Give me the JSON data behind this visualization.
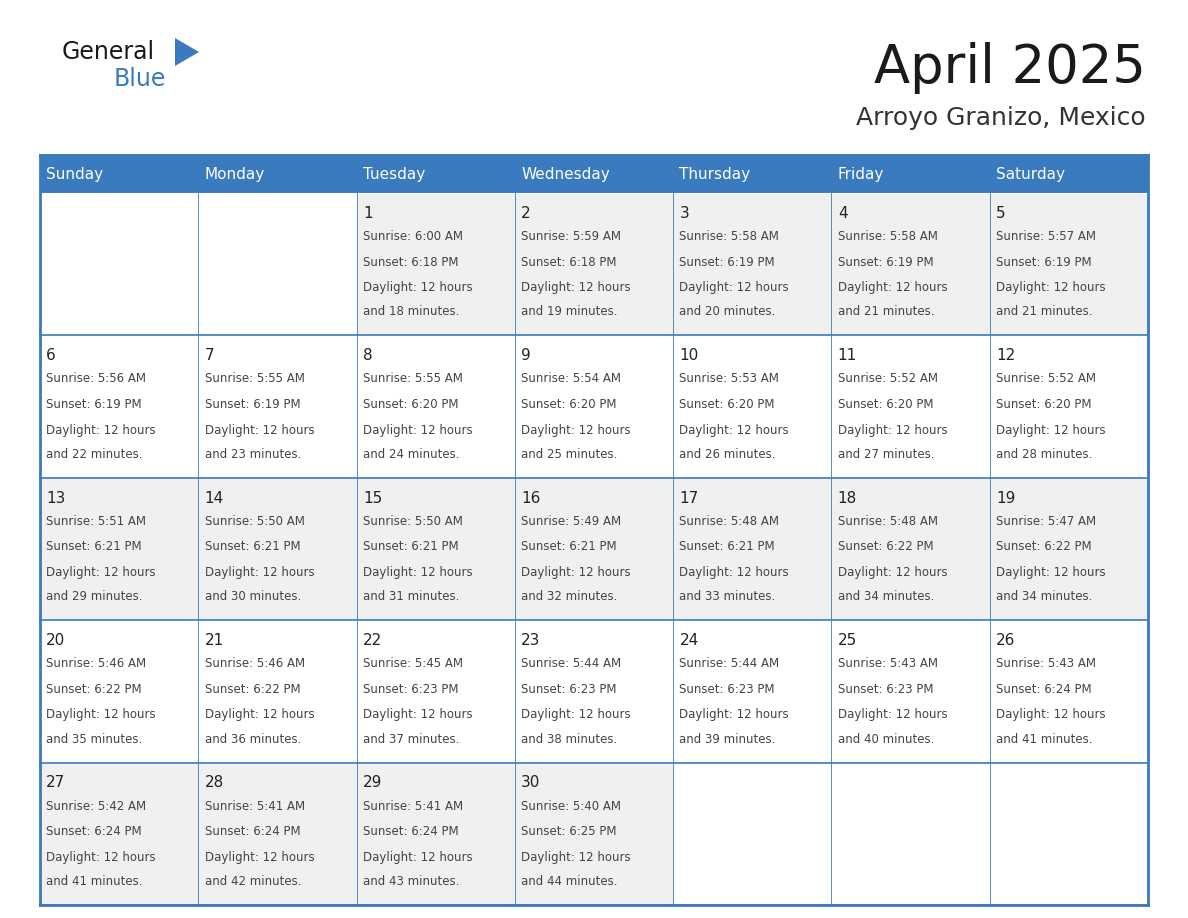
{
  "title": "April 2025",
  "subtitle": "Arroyo Granizo, Mexico",
  "header_bg": "#3a7abf",
  "header_text_color": "#ffffff",
  "cell_bg_even": "#f0f0f0",
  "cell_bg_odd": "#ffffff",
  "border_color": "#3a7abf",
  "day_headers": [
    "Sunday",
    "Monday",
    "Tuesday",
    "Wednesday",
    "Thursday",
    "Friday",
    "Saturday"
  ],
  "weeks": [
    [
      {
        "day": "",
        "sunrise": "",
        "sunset": "",
        "daylight": ""
      },
      {
        "day": "",
        "sunrise": "",
        "sunset": "",
        "daylight": ""
      },
      {
        "day": "1",
        "sunrise": "Sunrise: 6:00 AM",
        "sunset": "Sunset: 6:18 PM",
        "daylight": "Daylight: 12 hours\nand 18 minutes."
      },
      {
        "day": "2",
        "sunrise": "Sunrise: 5:59 AM",
        "sunset": "Sunset: 6:18 PM",
        "daylight": "Daylight: 12 hours\nand 19 minutes."
      },
      {
        "day": "3",
        "sunrise": "Sunrise: 5:58 AM",
        "sunset": "Sunset: 6:19 PM",
        "daylight": "Daylight: 12 hours\nand 20 minutes."
      },
      {
        "day": "4",
        "sunrise": "Sunrise: 5:58 AM",
        "sunset": "Sunset: 6:19 PM",
        "daylight": "Daylight: 12 hours\nand 21 minutes."
      },
      {
        "day": "5",
        "sunrise": "Sunrise: 5:57 AM",
        "sunset": "Sunset: 6:19 PM",
        "daylight": "Daylight: 12 hours\nand 21 minutes."
      }
    ],
    [
      {
        "day": "6",
        "sunrise": "Sunrise: 5:56 AM",
        "sunset": "Sunset: 6:19 PM",
        "daylight": "Daylight: 12 hours\nand 22 minutes."
      },
      {
        "day": "7",
        "sunrise": "Sunrise: 5:55 AM",
        "sunset": "Sunset: 6:19 PM",
        "daylight": "Daylight: 12 hours\nand 23 minutes."
      },
      {
        "day": "8",
        "sunrise": "Sunrise: 5:55 AM",
        "sunset": "Sunset: 6:20 PM",
        "daylight": "Daylight: 12 hours\nand 24 minutes."
      },
      {
        "day": "9",
        "sunrise": "Sunrise: 5:54 AM",
        "sunset": "Sunset: 6:20 PM",
        "daylight": "Daylight: 12 hours\nand 25 minutes."
      },
      {
        "day": "10",
        "sunrise": "Sunrise: 5:53 AM",
        "sunset": "Sunset: 6:20 PM",
        "daylight": "Daylight: 12 hours\nand 26 minutes."
      },
      {
        "day": "11",
        "sunrise": "Sunrise: 5:52 AM",
        "sunset": "Sunset: 6:20 PM",
        "daylight": "Daylight: 12 hours\nand 27 minutes."
      },
      {
        "day": "12",
        "sunrise": "Sunrise: 5:52 AM",
        "sunset": "Sunset: 6:20 PM",
        "daylight": "Daylight: 12 hours\nand 28 minutes."
      }
    ],
    [
      {
        "day": "13",
        "sunrise": "Sunrise: 5:51 AM",
        "sunset": "Sunset: 6:21 PM",
        "daylight": "Daylight: 12 hours\nand 29 minutes."
      },
      {
        "day": "14",
        "sunrise": "Sunrise: 5:50 AM",
        "sunset": "Sunset: 6:21 PM",
        "daylight": "Daylight: 12 hours\nand 30 minutes."
      },
      {
        "day": "15",
        "sunrise": "Sunrise: 5:50 AM",
        "sunset": "Sunset: 6:21 PM",
        "daylight": "Daylight: 12 hours\nand 31 minutes."
      },
      {
        "day": "16",
        "sunrise": "Sunrise: 5:49 AM",
        "sunset": "Sunset: 6:21 PM",
        "daylight": "Daylight: 12 hours\nand 32 minutes."
      },
      {
        "day": "17",
        "sunrise": "Sunrise: 5:48 AM",
        "sunset": "Sunset: 6:21 PM",
        "daylight": "Daylight: 12 hours\nand 33 minutes."
      },
      {
        "day": "18",
        "sunrise": "Sunrise: 5:48 AM",
        "sunset": "Sunset: 6:22 PM",
        "daylight": "Daylight: 12 hours\nand 34 minutes."
      },
      {
        "day": "19",
        "sunrise": "Sunrise: 5:47 AM",
        "sunset": "Sunset: 6:22 PM",
        "daylight": "Daylight: 12 hours\nand 34 minutes."
      }
    ],
    [
      {
        "day": "20",
        "sunrise": "Sunrise: 5:46 AM",
        "sunset": "Sunset: 6:22 PM",
        "daylight": "Daylight: 12 hours\nand 35 minutes."
      },
      {
        "day": "21",
        "sunrise": "Sunrise: 5:46 AM",
        "sunset": "Sunset: 6:22 PM",
        "daylight": "Daylight: 12 hours\nand 36 minutes."
      },
      {
        "day": "22",
        "sunrise": "Sunrise: 5:45 AM",
        "sunset": "Sunset: 6:23 PM",
        "daylight": "Daylight: 12 hours\nand 37 minutes."
      },
      {
        "day": "23",
        "sunrise": "Sunrise: 5:44 AM",
        "sunset": "Sunset: 6:23 PM",
        "daylight": "Daylight: 12 hours\nand 38 minutes."
      },
      {
        "day": "24",
        "sunrise": "Sunrise: 5:44 AM",
        "sunset": "Sunset: 6:23 PM",
        "daylight": "Daylight: 12 hours\nand 39 minutes."
      },
      {
        "day": "25",
        "sunrise": "Sunrise: 5:43 AM",
        "sunset": "Sunset: 6:23 PM",
        "daylight": "Daylight: 12 hours\nand 40 minutes."
      },
      {
        "day": "26",
        "sunrise": "Sunrise: 5:43 AM",
        "sunset": "Sunset: 6:24 PM",
        "daylight": "Daylight: 12 hours\nand 41 minutes."
      }
    ],
    [
      {
        "day": "27",
        "sunrise": "Sunrise: 5:42 AM",
        "sunset": "Sunset: 6:24 PM",
        "daylight": "Daylight: 12 hours\nand 41 minutes."
      },
      {
        "day": "28",
        "sunrise": "Sunrise: 5:41 AM",
        "sunset": "Sunset: 6:24 PM",
        "daylight": "Daylight: 12 hours\nand 42 minutes."
      },
      {
        "day": "29",
        "sunrise": "Sunrise: 5:41 AM",
        "sunset": "Sunset: 6:24 PM",
        "daylight": "Daylight: 12 hours\nand 43 minutes."
      },
      {
        "day": "30",
        "sunrise": "Sunrise: 5:40 AM",
        "sunset": "Sunset: 6:25 PM",
        "daylight": "Daylight: 12 hours\nand 44 minutes."
      },
      {
        "day": "",
        "sunrise": "",
        "sunset": "",
        "daylight": ""
      },
      {
        "day": "",
        "sunrise": "",
        "sunset": "",
        "daylight": ""
      },
      {
        "day": "",
        "sunrise": "",
        "sunset": "",
        "daylight": ""
      }
    ]
  ],
  "fig_width": 11.88,
  "fig_height": 9.18,
  "dpi": 100
}
